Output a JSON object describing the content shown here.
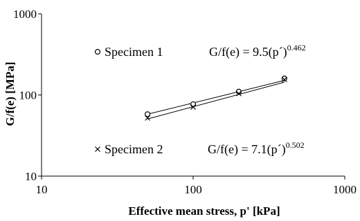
{
  "chart_data": {
    "type": "scatter",
    "xscale": "log",
    "yscale": "log",
    "xlim": [
      10,
      1000
    ],
    "ylim": [
      10,
      1000
    ],
    "xticks": [
      10,
      100,
      1000
    ],
    "yticks": [
      10,
      100,
      1000
    ],
    "xtick_labels": [
      "10",
      "100",
      "1000"
    ],
    "ytick_labels": [
      "10",
      "100",
      "1000"
    ],
    "xlabel": "Effective mean stress, p' [kPa]",
    "ylabel": "G/f(e) [MPa]",
    "grid": false,
    "series": [
      {
        "name": "Specimen 1",
        "marker": "circle",
        "x": [
          50,
          100,
          200,
          400
        ],
        "y": [
          58,
          77,
          110,
          160
        ],
        "fit": {
          "coef": 9.5,
          "exp": 0.462,
          "x_range": [
            50,
            400
          ],
          "label_main": "G/f(e) = 9.5(p´)",
          "label_exp": "0.462"
        }
      },
      {
        "name": "Specimen 2",
        "marker": "x",
        "x": [
          50,
          100,
          200,
          400
        ],
        "y": [
          52,
          71,
          104,
          155
        ],
        "fit": {
          "coef": 7.1,
          "exp": 0.502,
          "x_range": [
            50,
            400
          ],
          "label_main": "G/f(e) = 7.1(p´)",
          "label_exp": "0.502"
        }
      }
    ]
  }
}
